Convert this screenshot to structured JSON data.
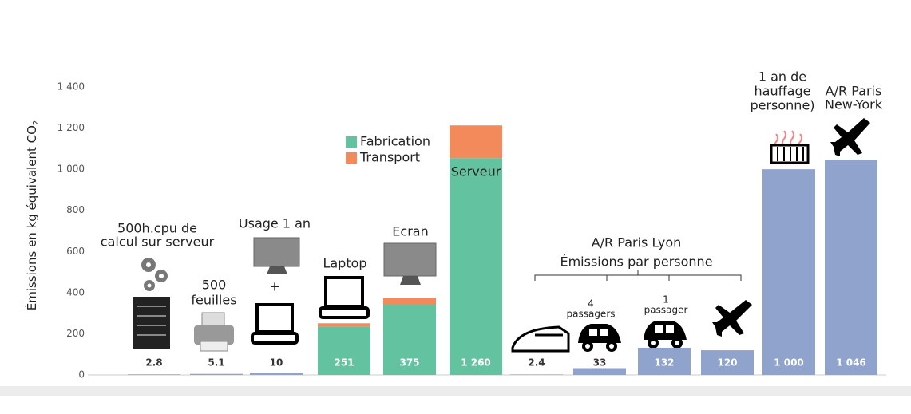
{
  "chart_data": {
    "type": "bar",
    "y_label": "Émissions en kg équivalent CO",
    "y_label_sub": "2",
    "categories": [
      [
        "500h.cpu de",
        "calcul sur serveur"
      ],
      [
        "500",
        "feuilles"
      ],
      [
        "Usage 1 an"
      ],
      [
        "Laptop"
      ],
      [
        "Ecran"
      ],
      [
        "Serveur"
      ],
      null,
      [
        "4",
        "passagers"
      ],
      [
        "1",
        "passager"
      ],
      null,
      [
        "1 an de",
        "hauffage",
        "personne)"
      ],
      [
        "A/R Paris",
        "New-York"
      ]
    ],
    "values": [
      2.8,
      5.1,
      10,
      251,
      375,
      1260,
      2.4,
      33,
      132,
      120,
      1000,
      1046
    ],
    "value_labels": [
      "2.8",
      "5.1",
      "10",
      "251",
      "375",
      "1 260",
      "2.4",
      "33",
      "132",
      "120",
      "1 000",
      "1 046"
    ],
    "color": "#8fa3cc",
    "series": [
      {
        "name": "Fabrication",
        "color": "#63c3a0",
        "values": [
          null,
          null,
          null,
          236,
          345,
          1054,
          null,
          null,
          null,
          null,
          null,
          null
        ]
      },
      {
        "name": "Transport",
        "color": "#f28a5c",
        "values": [
          null,
          null,
          null,
          15,
          30,
          159,
          null,
          null,
          null,
          null,
          null,
          null
        ]
      }
    ],
    "plus": "+",
    "annotations": [
      "A/R Paris Lyon",
      "Émissions par personne"
    ],
    "ylim": [
      0,
      1400
    ],
    "yticks": [
      0,
      200,
      400,
      600,
      800,
      {
        "value": 1000,
        "label": "1 000"
      },
      {
        "value": 1200,
        "label": "1 200"
      },
      {
        "value": 1400,
        "label": "1 400"
      }
    ]
  }
}
